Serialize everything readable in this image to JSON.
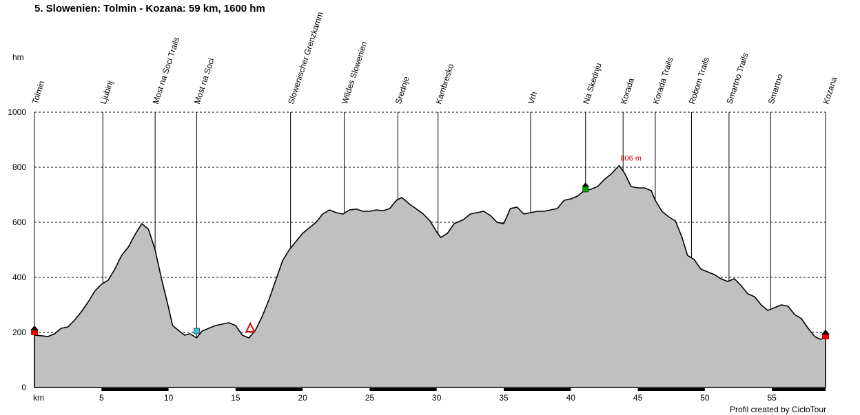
{
  "title": "5. Slowenien: Tolmin - Kozana: 59 km, 1600 hm",
  "credit": "Profil created by CicloTour",
  "chart_data": {
    "type": "area",
    "title": "5. Slowenien: Tolmin - Kozana: 59 km, 1600 hm",
    "xlabel": "km",
    "ylabel": "hm",
    "xlim": [
      0,
      59
    ],
    "ylim": [
      0,
      1000
    ],
    "xticks": [
      5,
      10,
      15,
      20,
      25,
      30,
      35,
      40,
      45,
      50,
      55
    ],
    "yticks": [
      0,
      200,
      400,
      600,
      800,
      1000
    ],
    "grid": true,
    "fill_color": "#c0c0c0",
    "line_color": "#000000",
    "peak_label": {
      "x": 43.6,
      "y": 806,
      "text": "806 m",
      "color": "#cc0000"
    },
    "waypoints": [
      {
        "name": "Tolmin",
        "km": 0
      },
      {
        "name": "Ljubinj",
        "km": 5.1
      },
      {
        "name": "Most na Soci Trails",
        "km": 9.0
      },
      {
        "name": "Most na Soci",
        "km": 12.1
      },
      {
        "name": "Slowenischer Grenzkamm",
        "km": 19.1
      },
      {
        "name": "Wildes Slowenien",
        "km": 23.1
      },
      {
        "name": "Srednje",
        "km": 27.1
      },
      {
        "name": "Kambresko",
        "km": 30.1
      },
      {
        "name": "Vrh",
        "km": 37.0
      },
      {
        "name": "Na Skednju",
        "km": 41.1
      },
      {
        "name": "Korada",
        "km": 43.9
      },
      {
        "name": "Korada Trails",
        "km": 46.3
      },
      {
        "name": "Robom Trails",
        "km": 49.0
      },
      {
        "name": "Smartno Trails",
        "km": 51.8
      },
      {
        "name": "Smartno",
        "km": 54.9
      },
      {
        "name": "Kozana",
        "km": 59
      }
    ],
    "markers": [
      {
        "km": 0,
        "elev": 200,
        "kind": "start",
        "color": "#e00000"
      },
      {
        "km": 12.1,
        "elev": 205,
        "kind": "poi",
        "color": "#40c0e0"
      },
      {
        "km": 16.1,
        "elev": 210,
        "kind": "warning-triangle",
        "color": "#e00000"
      },
      {
        "km": 41.1,
        "elev": 720,
        "kind": "poi",
        "color": "#00a000"
      },
      {
        "km": 59,
        "elev": 185,
        "kind": "finish",
        "color": "#e00000"
      }
    ],
    "profile": [
      [
        0,
        190
      ],
      [
        0.5,
        188
      ],
      [
        1,
        185
      ],
      [
        1.5,
        195
      ],
      [
        2,
        215
      ],
      [
        2.5,
        220
      ],
      [
        3,
        245
      ],
      [
        3.5,
        275
      ],
      [
        4,
        310
      ],
      [
        4.5,
        350
      ],
      [
        5,
        375
      ],
      [
        5.5,
        390
      ],
      [
        6,
        430
      ],
      [
        6.5,
        480
      ],
      [
        7,
        510
      ],
      [
        7.5,
        555
      ],
      [
        8,
        595
      ],
      [
        8.5,
        575
      ],
      [
        9,
        500
      ],
      [
        9.5,
        390
      ],
      [
        10,
        290
      ],
      [
        10.3,
        225
      ],
      [
        10.8,
        205
      ],
      [
        11.2,
        190
      ],
      [
        11.6,
        195
      ],
      [
        12.1,
        180
      ],
      [
        12.5,
        205
      ],
      [
        13,
        215
      ],
      [
        13.5,
        225
      ],
      [
        14,
        230
      ],
      [
        14.5,
        235
      ],
      [
        15,
        225
      ],
      [
        15.5,
        190
      ],
      [
        16,
        180
      ],
      [
        16.5,
        210
      ],
      [
        17,
        260
      ],
      [
        17.5,
        320
      ],
      [
        18,
        390
      ],
      [
        18.5,
        460
      ],
      [
        19,
        500
      ],
      [
        19.5,
        530
      ],
      [
        20,
        560
      ],
      [
        20.5,
        580
      ],
      [
        21,
        600
      ],
      [
        21.5,
        630
      ],
      [
        22,
        645
      ],
      [
        22.5,
        635
      ],
      [
        23,
        630
      ],
      [
        23.5,
        645
      ],
      [
        24,
        648
      ],
      [
        24.5,
        640
      ],
      [
        25,
        640
      ],
      [
        25.5,
        645
      ],
      [
        26,
        642
      ],
      [
        26.5,
        650
      ],
      [
        27,
        680
      ],
      [
        27.4,
        690
      ],
      [
        28,
        665
      ],
      [
        28.5,
        648
      ],
      [
        29,
        630
      ],
      [
        29.5,
        605
      ],
      [
        30,
        565
      ],
      [
        30.3,
        545
      ],
      [
        30.8,
        560
      ],
      [
        31.3,
        595
      ],
      [
        32,
        610
      ],
      [
        32.5,
        630
      ],
      [
        33,
        635
      ],
      [
        33.5,
        640
      ],
      [
        34,
        625
      ],
      [
        34.5,
        600
      ],
      [
        35,
        595
      ],
      [
        35.5,
        650
      ],
      [
        36,
        655
      ],
      [
        36.5,
        630
      ],
      [
        37,
        635
      ],
      [
        37.5,
        640
      ],
      [
        38,
        640
      ],
      [
        38.5,
        645
      ],
      [
        39,
        650
      ],
      [
        39.5,
        680
      ],
      [
        40,
        685
      ],
      [
        40.5,
        695
      ],
      [
        41,
        715
      ],
      [
        41.5,
        720
      ],
      [
        42,
        730
      ],
      [
        42.5,
        755
      ],
      [
        43,
        775
      ],
      [
        43.6,
        806
      ],
      [
        44,
        780
      ],
      [
        44.5,
        730
      ],
      [
        45,
        725
      ],
      [
        45.5,
        725
      ],
      [
        46,
        715
      ],
      [
        46.3,
        680
      ],
      [
        46.8,
        640
      ],
      [
        47.3,
        620
      ],
      [
        47.8,
        605
      ],
      [
        48.3,
        545
      ],
      [
        48.7,
        480
      ],
      [
        49.2,
        465
      ],
      [
        49.7,
        430
      ],
      [
        50.2,
        420
      ],
      [
        50.7,
        410
      ],
      [
        51.2,
        395
      ],
      [
        51.7,
        385
      ],
      [
        52.2,
        395
      ],
      [
        52.7,
        370
      ],
      [
        53.2,
        340
      ],
      [
        53.7,
        330
      ],
      [
        54.2,
        300
      ],
      [
        54.7,
        280
      ],
      [
        55.2,
        290
      ],
      [
        55.7,
        300
      ],
      [
        56.2,
        295
      ],
      [
        56.7,
        265
      ],
      [
        57.2,
        250
      ],
      [
        57.7,
        215
      ],
      [
        58.2,
        185
      ],
      [
        58.6,
        175
      ],
      [
        59,
        180
      ]
    ]
  }
}
